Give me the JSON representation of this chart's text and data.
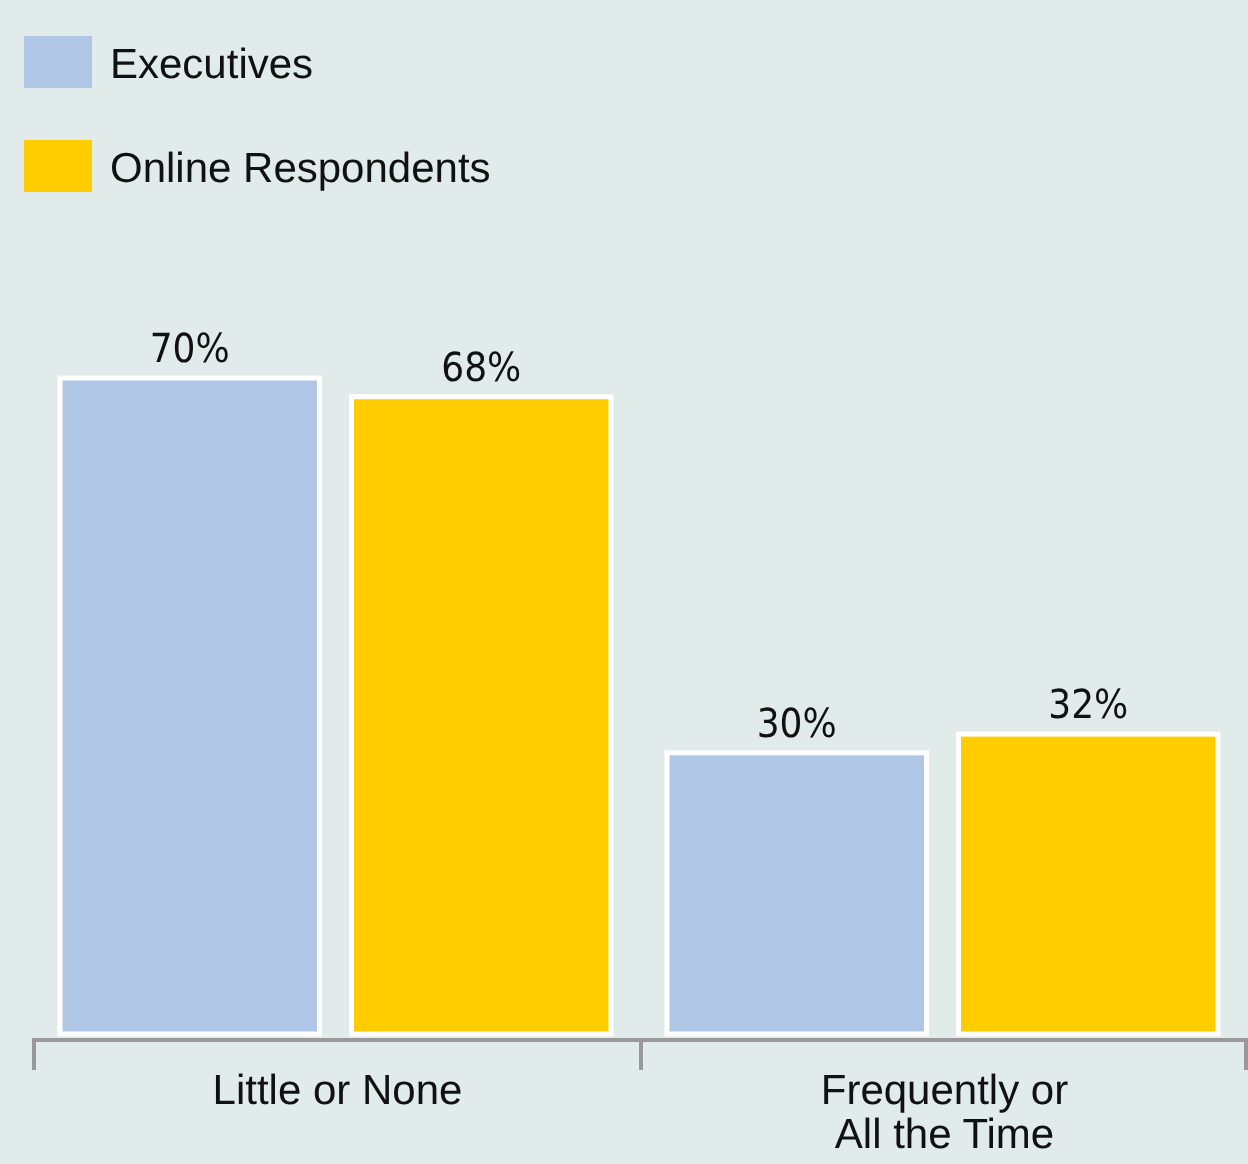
{
  "chart_data": {
    "type": "bar",
    "categories": [
      "Little or None",
      "Frequently or All the Time"
    ],
    "series": [
      {
        "name": "Executives",
        "color": "#b0c6e6",
        "values": [
          70,
          30
        ],
        "value_labels": [
          "70%",
          "30%"
        ]
      },
      {
        "name": "Online Respondents",
        "color": "#ffcc00",
        "values": [
          68,
          32
        ],
        "value_labels": [
          "68%",
          "32%"
        ]
      }
    ],
    "legend": "top left"
  }
}
